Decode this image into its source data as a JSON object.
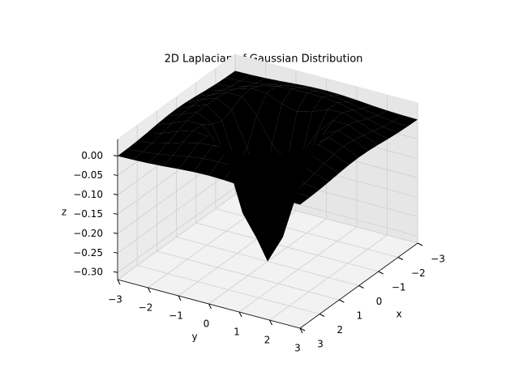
{
  "chart_data": {
    "type": "surface",
    "title": "2D Laplacian of Gaussian Distribution",
    "xlabel": "x",
    "ylabel": "y",
    "zlabel": "z",
    "colormap": "viridis",
    "x": [
      -3,
      -2.5,
      -2,
      -1.5,
      -1,
      -0.5,
      0,
      0.5,
      1,
      1.5,
      2,
      2.5,
      3
    ],
    "y": [
      -3,
      -2.5,
      -2,
      -1.5,
      -1,
      -0.5,
      0,
      0.5,
      1,
      1.5,
      2,
      2.5,
      3
    ],
    "z": [
      [
        0.0003,
        0.001,
        0.0026,
        0.0053,
        0.0086,
        0.0113,
        0.0124,
        0.0113,
        0.0086,
        0.0053,
        0.0026,
        0.001,
        0.0003
      ],
      [
        0.001,
        0.0032,
        0.0078,
        0.0148,
        0.0223,
        0.0278,
        0.0297,
        0.0278,
        0.0223,
        0.0148,
        0.0078,
        0.0032,
        0.001
      ],
      [
        0.0026,
        0.0078,
        0.0175,
        0.0297,
        0.0392,
        0.0428,
        0.0431,
        0.0428,
        0.0392,
        0.0297,
        0.0175,
        0.0078,
        0.0026
      ],
      [
        0.0053,
        0.0148,
        0.0297,
        0.0419,
        0.0392,
        0.0228,
        0.0129,
        0.0228,
        0.0392,
        0.0419,
        0.0297,
        0.0148,
        0.0053
      ],
      [
        0.0086,
        0.0223,
        0.0392,
        0.0392,
        0,
        -0.0639,
        -0.0965,
        -0.0639,
        0,
        0.0392,
        0.0392,
        0.0223,
        0.0086
      ],
      [
        0.0113,
        0.0278,
        0.0428,
        0.0228,
        -0.0639,
        -0.1859,
        -0.2458,
        -0.1859,
        -0.0639,
        0.0228,
        0.0428,
        0.0278,
        0.0113
      ],
      [
        0.0124,
        0.0297,
        0.0431,
        0.0129,
        -0.0965,
        -0.2458,
        -0.3183,
        -0.2458,
        -0.0965,
        0.0129,
        0.0431,
        0.0297,
        0.0124
      ],
      [
        0.0113,
        0.0278,
        0.0428,
        0.0228,
        -0.0639,
        -0.1859,
        -0.2458,
        -0.1859,
        -0.0639,
        0.0228,
        0.0428,
        0.0278,
        0.0113
      ],
      [
        0.0086,
        0.0223,
        0.0392,
        0.0392,
        0,
        -0.0639,
        -0.0965,
        -0.0639,
        0,
        0.0392,
        0.0392,
        0.0223,
        0.0086
      ],
      [
        0.0053,
        0.0148,
        0.0297,
        0.0419,
        0.0392,
        0.0228,
        0.0129,
        0.0228,
        0.0392,
        0.0419,
        0.0297,
        0.0148,
        0.0053
      ],
      [
        0.0026,
        0.0078,
        0.0175,
        0.0297,
        0.0392,
        0.0428,
        0.0431,
        0.0428,
        0.0392,
        0.0297,
        0.0175,
        0.0078,
        0.0026
      ],
      [
        0.001,
        0.0032,
        0.0078,
        0.0148,
        0.0223,
        0.0278,
        0.0297,
        0.0278,
        0.0223,
        0.0148,
        0.0078,
        0.0032,
        0.001
      ],
      [
        0.0003,
        0.001,
        0.0026,
        0.0053,
        0.0086,
        0.0113,
        0.0124,
        0.0113,
        0.0086,
        0.0053,
        0.0026,
        0.001,
        0.0003
      ]
    ],
    "xlim": [
      -3,
      3
    ],
    "ylim": [
      -3,
      3
    ],
    "zlim": [
      -0.3183,
      0.0431
    ],
    "xticks": [
      {
        "value": -3,
        "label": "−3"
      },
      {
        "value": -2,
        "label": "−2"
      },
      {
        "value": -1,
        "label": "−1"
      },
      0,
      1,
      2,
      3
    ],
    "yticks": [
      {
        "value": -3,
        "label": "−3"
      },
      {
        "value": -2,
        "label": "−2"
      },
      {
        "value": -1,
        "label": "−1"
      },
      0,
      1,
      2,
      3
    ],
    "zticks": [
      {
        "value": -0.3,
        "label": "−0.30"
      },
      {
        "value": -0.25,
        "label": "−0.25"
      },
      {
        "value": -0.2,
        "label": "−0.20"
      },
      {
        "value": -0.15,
        "label": "−0.15"
      },
      {
        "value": -0.1,
        "label": "−0.10"
      },
      {
        "value": -0.05,
        "label": "−0.05"
      },
      {
        "value": 0,
        "label": "0.00"
      }
    ],
    "grid": true
  }
}
